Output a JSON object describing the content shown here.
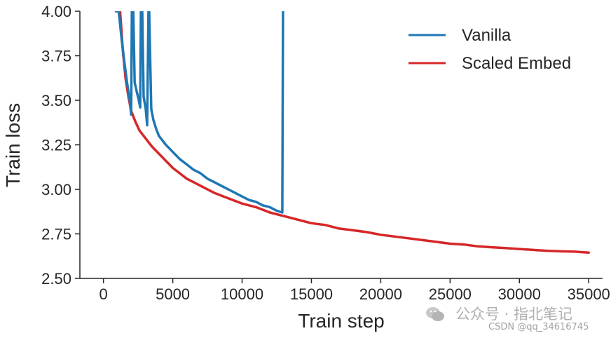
{
  "chart_data": {
    "type": "line",
    "xlabel": "Train step",
    "ylabel": "Train loss",
    "xlim": [
      -1700,
      36000
    ],
    "ylim": [
      2.5,
      4.0
    ],
    "xticks": [
      0,
      5000,
      10000,
      15000,
      20000,
      25000,
      30000,
      35000
    ],
    "yticks": [
      "2.50",
      "2.75",
      "3.00",
      "3.25",
      "3.50",
      "3.75",
      "4.00"
    ],
    "grid": false,
    "legend_position": "top-right",
    "series": [
      {
        "name": "Vanilla",
        "color": "#1f77b4",
        "points": [
          [
            900,
            4.0
          ],
          [
            1100,
            4.0
          ],
          [
            1300,
            3.85
          ],
          [
            1500,
            3.72
          ],
          [
            1700,
            3.6
          ],
          [
            1900,
            3.5
          ],
          [
            2000,
            3.42
          ],
          [
            2050,
            4.0
          ],
          [
            2150,
            4.0
          ],
          [
            2250,
            3.6
          ],
          [
            2400,
            3.55
          ],
          [
            2550,
            3.5
          ],
          [
            2650,
            3.46
          ],
          [
            2700,
            4.0
          ],
          [
            2800,
            4.0
          ],
          [
            2900,
            3.52
          ],
          [
            3050,
            3.45
          ],
          [
            3150,
            3.36
          ],
          [
            3250,
            4.0
          ],
          [
            3300,
            4.0
          ],
          [
            3450,
            3.45
          ],
          [
            3600,
            3.39
          ],
          [
            3800,
            3.34
          ],
          [
            4000,
            3.3
          ],
          [
            4500,
            3.25
          ],
          [
            5000,
            3.21
          ],
          [
            5500,
            3.17
          ],
          [
            6000,
            3.14
          ],
          [
            6500,
            3.11
          ],
          [
            7000,
            3.09
          ],
          [
            7500,
            3.06
          ],
          [
            8000,
            3.04
          ],
          [
            8500,
            3.02
          ],
          [
            9000,
            3.0
          ],
          [
            9500,
            2.98
          ],
          [
            10000,
            2.96
          ],
          [
            10500,
            2.94
          ],
          [
            11000,
            2.93
          ],
          [
            11500,
            2.91
          ],
          [
            12000,
            2.9
          ],
          [
            12500,
            2.88
          ],
          [
            12900,
            2.87
          ],
          [
            12950,
            4.0
          ]
        ]
      },
      {
        "name": "Scaled Embed",
        "color": "#d62728",
        "points": [
          [
            1000,
            4.0
          ],
          [
            1200,
            4.0
          ],
          [
            1400,
            3.78
          ],
          [
            1600,
            3.62
          ],
          [
            1800,
            3.52
          ],
          [
            2000,
            3.44
          ],
          [
            2300,
            3.38
          ],
          [
            2600,
            3.33
          ],
          [
            3000,
            3.29
          ],
          [
            3500,
            3.24
          ],
          [
            4000,
            3.2
          ],
          [
            4500,
            3.16
          ],
          [
            5000,
            3.12
          ],
          [
            5500,
            3.09
          ],
          [
            6000,
            3.06
          ],
          [
            6500,
            3.04
          ],
          [
            7000,
            3.02
          ],
          [
            7500,
            3.0
          ],
          [
            8000,
            2.98
          ],
          [
            9000,
            2.95
          ],
          [
            10000,
            2.92
          ],
          [
            11000,
            2.9
          ],
          [
            12000,
            2.87
          ],
          [
            13000,
            2.85
          ],
          [
            14000,
            2.83
          ],
          [
            15000,
            2.81
          ],
          [
            16000,
            2.8
          ],
          [
            17000,
            2.78
          ],
          [
            18000,
            2.77
          ],
          [
            19000,
            2.76
          ],
          [
            20000,
            2.745
          ],
          [
            21000,
            2.735
          ],
          [
            22000,
            2.725
          ],
          [
            23000,
            2.715
          ],
          [
            24000,
            2.705
          ],
          [
            25000,
            2.695
          ],
          [
            26000,
            2.69
          ],
          [
            27000,
            2.68
          ],
          [
            28000,
            2.675
          ],
          [
            29000,
            2.67
          ],
          [
            30000,
            2.665
          ],
          [
            31000,
            2.66
          ],
          [
            32000,
            2.655
          ],
          [
            33000,
            2.652
          ],
          [
            34000,
            2.65
          ],
          [
            35000,
            2.645
          ]
        ]
      }
    ]
  },
  "watermark": {
    "line1": "公众号 · 指北笔记",
    "line2": "CSDN @qq_34616745",
    "icon": "wechat-icon"
  }
}
